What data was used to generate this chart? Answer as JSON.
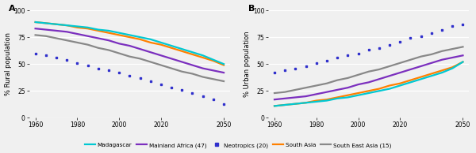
{
  "years": [
    1960,
    1965,
    1970,
    1975,
    1980,
    1985,
    1990,
    1995,
    2000,
    2005,
    2010,
    2015,
    2020,
    2025,
    2030,
    2035,
    2040,
    2045,
    2050
  ],
  "rural": {
    "Madagascar": [
      89,
      88,
      87,
      86,
      85,
      84,
      82,
      81,
      79,
      77,
      75,
      73,
      70,
      67,
      64,
      61,
      58,
      54,
      50
    ],
    "Mainland Africa": [
      83,
      82,
      81,
      80,
      78,
      76,
      74,
      72,
      69,
      67,
      64,
      61,
      58,
      55,
      52,
      49,
      46,
      44,
      42
    ],
    "Neotropics": [
      60,
      58,
      56,
      54,
      51,
      49,
      46,
      44,
      42,
      39,
      37,
      34,
      31,
      28,
      26,
      23,
      20,
      17,
      13
    ],
    "South Asia": [
      89,
      88,
      87,
      86,
      84,
      83,
      81,
      79,
      77,
      75,
      73,
      70,
      68,
      65,
      62,
      59,
      56,
      53,
      49
    ],
    "South East Asia": [
      77,
      76,
      74,
      72,
      70,
      68,
      65,
      63,
      60,
      57,
      55,
      52,
      49,
      46,
      43,
      41,
      38,
      36,
      34
    ]
  },
  "urban": {
    "Madagascar": [
      11,
      12,
      13,
      14,
      15,
      16,
      18,
      19,
      21,
      23,
      25,
      27,
      30,
      33,
      36,
      39,
      42,
      46,
      52
    ],
    "Mainland Africa": [
      17,
      18,
      19,
      20,
      22,
      24,
      26,
      28,
      31,
      33,
      36,
      39,
      42,
      45,
      48,
      51,
      54,
      56,
      58
    ],
    "Neotropics": [
      42,
      44,
      46,
      48,
      51,
      53,
      56,
      58,
      60,
      63,
      65,
      68,
      71,
      74,
      76,
      79,
      82,
      85,
      87
    ],
    "South Asia": [
      11,
      12,
      13,
      14,
      16,
      17,
      19,
      21,
      23,
      25,
      27,
      30,
      32,
      35,
      38,
      41,
      44,
      47,
      52
    ],
    "South East Asia": [
      23,
      24,
      26,
      28,
      30,
      32,
      35,
      37,
      40,
      43,
      45,
      48,
      51,
      54,
      57,
      59,
      62,
      64,
      66
    ]
  },
  "colors": {
    "Madagascar": "#00c8d2",
    "Mainland Africa": "#7b2fbe",
    "Neotropics": "#3030cc",
    "South Asia": "#ff8000",
    "South East Asia": "#888888"
  },
  "legend_labels": {
    "Madagascar": "Madagascar",
    "Mainland Africa": "Mainland Africa (47)",
    "Neotropics": "Neotropics (20)",
    "South Asia": "South Asia",
    "South East Asia": "South East Asia (15)"
  },
  "xlim": [
    1957,
    2053
  ],
  "xticks": [
    1960,
    1980,
    2000,
    2020,
    2050
  ],
  "ylim": [
    0,
    100
  ],
  "yticks": [
    0,
    25,
    50,
    75,
    100
  ],
  "ylabel_A": "% Rural population",
  "ylabel_B": "% Urban population",
  "panel_A": "A",
  "panel_B": "B",
  "bg_color": "#f0f0f0",
  "grid_color": "#ffffff",
  "linewidth_solid": 1.6,
  "dotted_series": "Neotropics"
}
